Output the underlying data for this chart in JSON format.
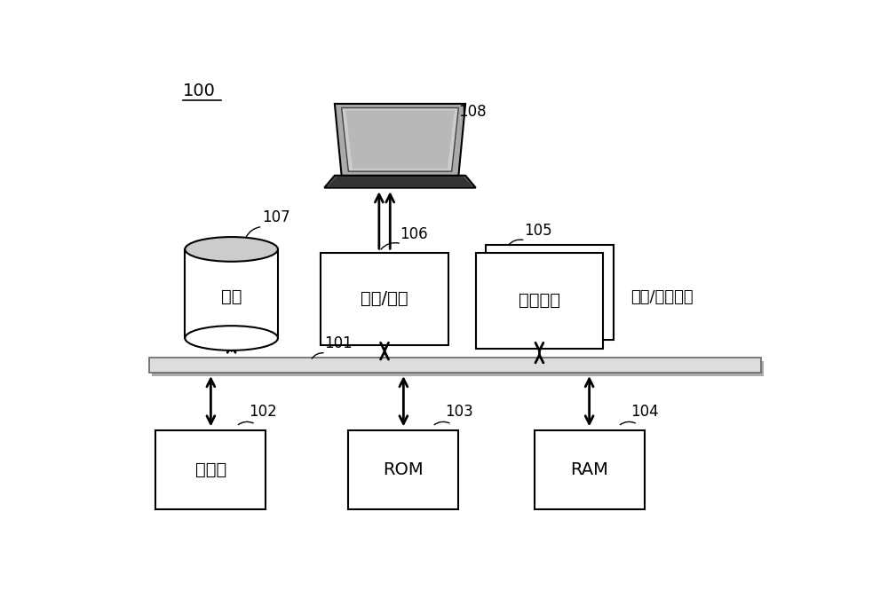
{
  "bg_color": "#ffffff",
  "title_label": "100",
  "network_label": "来自/去往网络",
  "font_size_label": 14,
  "font_size_id": 12,
  "font_size_title": 14,
  "font_size_network": 13,
  "hd_label": "硬盘",
  "io_label": "输入/输出",
  "cp_label": "通信端口",
  "proc_label": "处理器",
  "rom_label": "ROM",
  "ram_label": "RAM"
}
